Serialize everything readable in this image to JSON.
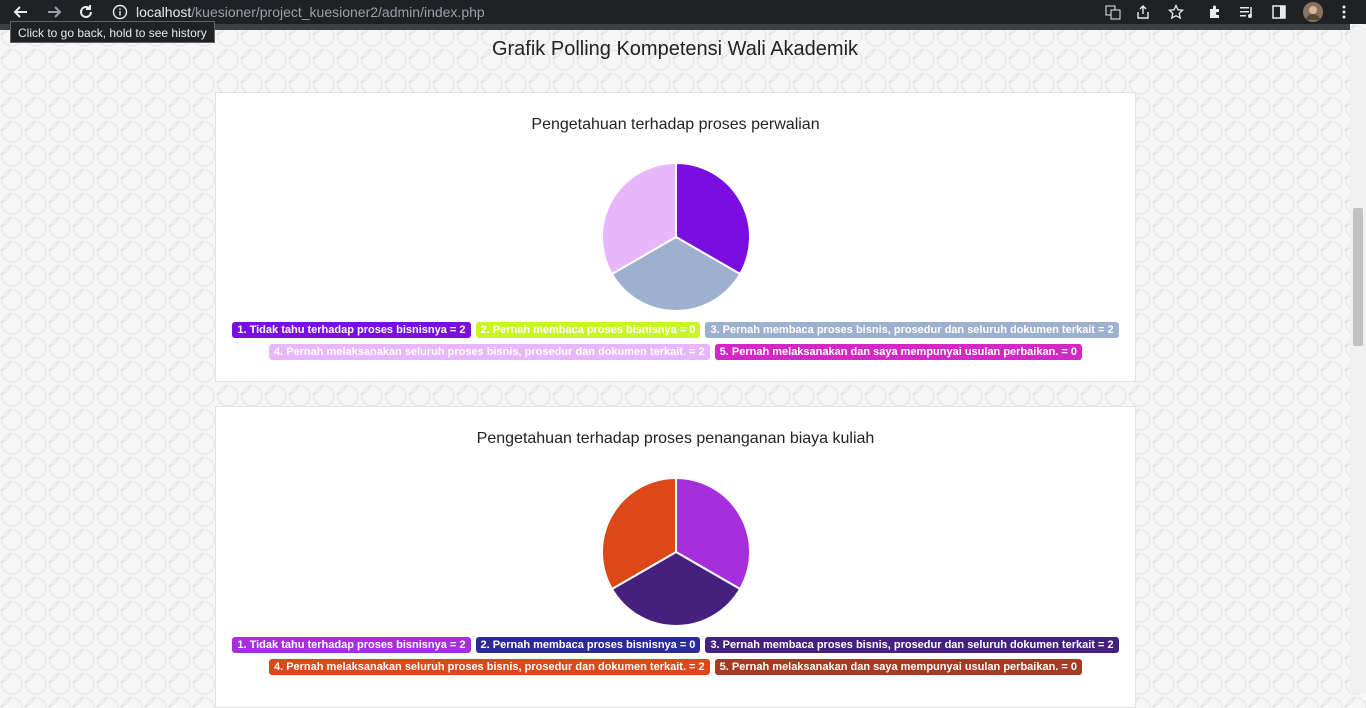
{
  "browser": {
    "url_host": "localhost",
    "url_path": "/kuesioner/project_kuesioner2/admin/index.php",
    "tooltip": "Click to go back, hold to see history"
  },
  "page": {
    "title": "Grafik Polling Kompetensi Wali Akademik"
  },
  "chart_data": [
    {
      "type": "pie",
      "title": "Pengetahuan terhadap proses perwalian",
      "categories": [
        "1. Tidak tahu terhadap proses bisnisnya = 2",
        "2. Pernah membaca proses bisnisnya = 0",
        "3. Pernah membaca proses bisnis, prosedur dan seluruh dokumen terkait = 2",
        "4. Pernah melaksanakan seluruh proses bisnis, prosedur dan dokumen terkait. = 2",
        "5. Pernah melaksanakan dan saya mempunyai usulan perbaikan. = 0"
      ],
      "values": [
        2,
        0,
        2,
        2,
        0
      ],
      "colors": [
        "#7a0ee0",
        "#c9f523",
        "#9eb0cf",
        "#e8b6fb",
        "#d428c6"
      ]
    },
    {
      "type": "pie",
      "title": "Pengetahuan terhadap proses penanganan biaya kuliah",
      "categories": [
        "1. Tidak tahu terhadap proses bisnisnya = 2",
        "2. Pernah membaca proses bisnisnya = 0",
        "3. Pernah membaca proses bisnis, prosedur dan seluruh dokumen terkait = 2",
        "4. Pernah melaksanakan seluruh proses bisnis, prosedur dan dokumen terkait. = 2",
        "5. Pernah melaksanakan dan saya mempunyai usulan perbaikan. = 0"
      ],
      "values": [
        2,
        0,
        2,
        2,
        0
      ],
      "colors": [
        "#a62fdc",
        "#2a2a99",
        "#46207f",
        "#dc4818",
        "#a63a22"
      ]
    }
  ]
}
